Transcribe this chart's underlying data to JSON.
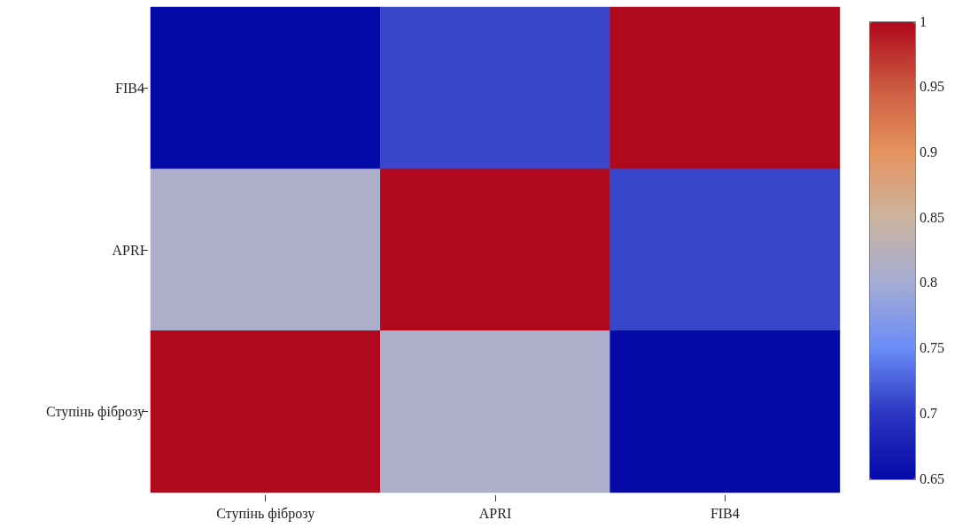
{
  "chart_data": {
    "type": "heatmap",
    "categories": [
      "Ступінь фіброзу",
      "APRI",
      "FIB4"
    ],
    "y_categories": [
      "FIB4",
      "APRI",
      "Ступінь фіброзу"
    ],
    "cells": [
      [
        0.65,
        0.71,
        1
      ],
      [
        0.81,
        1,
        0.71
      ],
      [
        1,
        0.81,
        0.65
      ]
    ],
    "clim": [
      0.65,
      1
    ],
    "cticks": [
      0.65,
      0.7,
      0.75,
      0.8,
      0.85,
      0.9,
      0.95,
      1
    ]
  }
}
